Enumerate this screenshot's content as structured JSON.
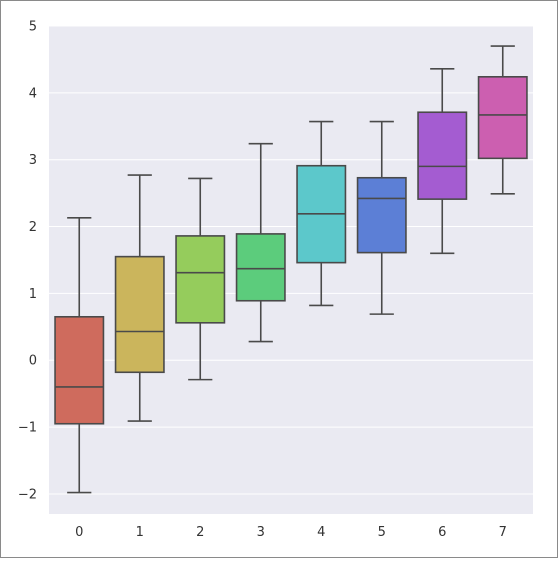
{
  "chart_data": {
    "type": "box",
    "categories": [
      "0",
      "1",
      "2",
      "3",
      "4",
      "5",
      "6",
      "7"
    ],
    "boxes": [
      {
        "category": "0",
        "whisker_low": -1.98,
        "q1": -0.95,
        "median": -0.4,
        "q3": 0.65,
        "whisker_high": 2.13,
        "color": "#cf6b5d"
      },
      {
        "category": "1",
        "whisker_low": -0.91,
        "q1": -0.18,
        "median": 0.43,
        "q3": 1.55,
        "whisker_high": 2.77,
        "color": "#cbb55c"
      },
      {
        "category": "2",
        "whisker_low": -0.29,
        "q1": 0.56,
        "median": 1.31,
        "q3": 1.86,
        "whisker_high": 2.72,
        "color": "#95cc5c"
      },
      {
        "category": "3",
        "whisker_low": 0.28,
        "q1": 0.89,
        "median": 1.37,
        "q3": 1.89,
        "whisker_high": 3.24,
        "color": "#5ccc7c"
      },
      {
        "category": "4",
        "whisker_low": 0.82,
        "q1": 1.46,
        "median": 2.19,
        "q3": 2.91,
        "whisker_high": 3.57,
        "color": "#5cc8cb"
      },
      {
        "category": "5",
        "whisker_low": 0.69,
        "q1": 1.61,
        "median": 2.42,
        "q3": 2.73,
        "whisker_high": 3.57,
        "color": "#5c7fd6"
      },
      {
        "category": "6",
        "whisker_low": 1.6,
        "q1": 2.41,
        "median": 2.9,
        "q3": 3.71,
        "whisker_high": 4.36,
        "color": "#a45cd1"
      },
      {
        "category": "7",
        "whisker_low": 2.49,
        "q1": 3.02,
        "median": 3.67,
        "q3": 4.24,
        "whisker_high": 4.7,
        "color": "#cc5fb0"
      }
    ],
    "y_ticks": [
      "5",
      "4",
      "3",
      "2",
      "1",
      "0",
      "−1",
      "−2"
    ],
    "y_tick_values": [
      5,
      4,
      3,
      2,
      1,
      0,
      -1,
      -2
    ],
    "ylim": [
      -2.3,
      5.0
    ],
    "grid": true,
    "style": {
      "background": "#eaeaf2",
      "grid_color": "#ffffff",
      "line_color": "#4a4a4a"
    }
  }
}
